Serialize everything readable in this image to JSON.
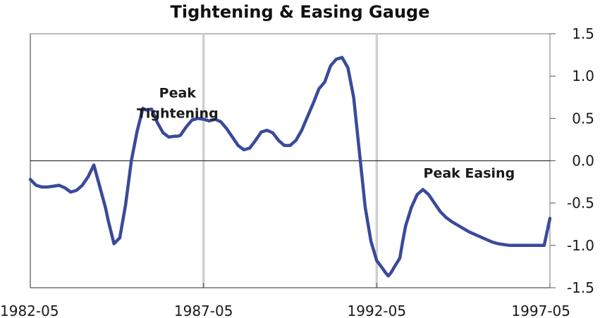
{
  "chart_data": {
    "type": "line",
    "title": "Tightening & Easing Gauge",
    "xlabel": "",
    "ylabel": "",
    "x_tick_labels": [
      "1982-05",
      "1987-05",
      "1992-05",
      "1997-05"
    ],
    "y_ticks": [
      1.5,
      1.0,
      0.5,
      0.0,
      -0.5,
      -1.0,
      -1.5
    ],
    "y_tick_labels": [
      "1.5",
      "1.0",
      "0.5",
      "0.0",
      "-0.5",
      "-1.0",
      "-1.5"
    ],
    "xlim": [
      "1982-05",
      "1997-05"
    ],
    "ylim": [
      -1.5,
      1.5
    ],
    "grid": false,
    "vertical_reference_lines": [
      "1987-05",
      "1992-05"
    ],
    "line_color": "#3a4a9a",
    "reference_line_color": "#d0d0d0",
    "annotations": [
      {
        "lines": [
          "Peak",
          "Tightening"
        ],
        "x": "1986-08",
        "y": 0.75
      },
      {
        "lines": [
          "Peak Easing"
        ],
        "x": "1995-01",
        "y": -0.2
      }
    ],
    "series": [
      {
        "x": [
          "1982-05",
          "1982-07",
          "1982-09",
          "1982-11",
          "1983-01",
          "1983-03",
          "1983-05",
          "1983-07",
          "1983-09",
          "1983-11",
          "1984-01",
          "1984-03",
          "1984-05",
          "1984-07",
          "1984-08",
          "1984-10",
          "1984-12",
          "1985-02",
          "1985-04",
          "1985-06",
          "1985-08",
          "1985-09",
          "1985-11",
          "1986-01",
          "1986-03",
          "1986-05",
          "1986-07",
          "1986-08",
          "1986-09",
          "1986-11",
          "1987-01",
          "1987-03",
          "1987-05",
          "1987-07",
          "1987-09",
          "1987-11",
          "1988-01",
          "1988-03",
          "1988-05",
          "1988-07",
          "1988-09",
          "1988-11",
          "1989-01",
          "1989-03",
          "1989-05",
          "1989-07",
          "1989-09",
          "1989-11",
          "1990-01",
          "1990-03",
          "1990-05",
          "1990-07",
          "1990-09",
          "1990-11",
          "1991-01",
          "1991-03",
          "1991-05",
          "1991-07",
          "1991-09",
          "1991-11",
          "1992-01",
          "1992-03",
          "1992-05",
          "1992-07",
          "1992-08",
          "1992-09",
          "1992-10",
          "1992-11",
          "1993-01",
          "1993-02",
          "1993-03",
          "1993-05",
          "1993-07",
          "1993-09",
          "1993-11",
          "1994-01",
          "1994-03",
          "1994-05",
          "1994-07",
          "1994-09",
          "1994-11",
          "1995-01",
          "1995-03",
          "1995-05",
          "1995-07",
          "1995-09",
          "1995-11",
          "1996-01",
          "1996-03",
          "1996-05",
          "1996-07",
          "1996-09",
          "1996-11",
          "1997-01",
          "1997-03",
          "1997-05"
        ],
        "values": [
          -0.22,
          -0.29,
          -0.31,
          -0.31,
          -0.3,
          -0.29,
          -0.32,
          -0.37,
          -0.35,
          -0.29,
          -0.19,
          -0.05,
          -0.3,
          -0.55,
          -0.71,
          -0.98,
          -0.91,
          -0.52,
          0.0,
          0.35,
          0.62,
          0.6,
          0.61,
          0.45,
          0.33,
          0.28,
          0.29,
          0.29,
          0.3,
          0.4,
          0.48,
          0.5,
          0.49,
          0.47,
          0.49,
          0.46,
          0.38,
          0.28,
          0.18,
          0.13,
          0.15,
          0.24,
          0.34,
          0.36,
          0.33,
          0.24,
          0.18,
          0.18,
          0.24,
          0.36,
          0.52,
          0.68,
          0.85,
          0.93,
          1.12,
          1.2,
          1.22,
          1.1,
          0.75,
          0.1,
          -0.55,
          -0.95,
          -1.18,
          -1.27,
          -1.32,
          -1.36,
          -1.32,
          -1.26,
          -1.15,
          -0.95,
          -0.77,
          -0.55,
          -0.4,
          -0.34,
          -0.4,
          -0.5,
          -0.6,
          -0.67,
          -0.72,
          -0.76,
          -0.8,
          -0.84,
          -0.87,
          -0.9,
          -0.93,
          -0.96,
          -0.98,
          -0.99,
          -1.0,
          -1.0,
          -1.0,
          -1.0,
          -1.0,
          -1.0,
          -1.0,
          -0.68
        ]
      }
    ]
  }
}
